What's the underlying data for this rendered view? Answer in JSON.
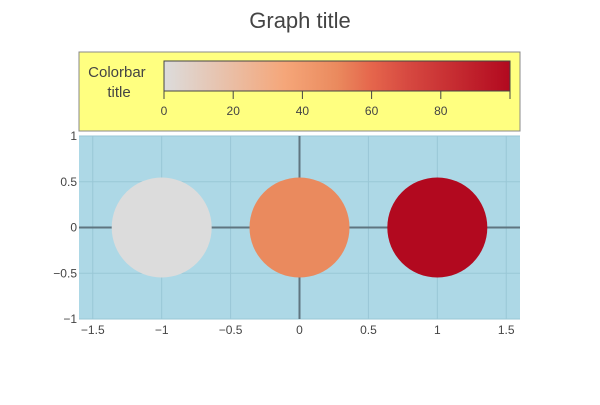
{
  "chart_data": {
    "type": "scatter",
    "title": "Graph title",
    "xlabel": "",
    "ylabel": "",
    "xlim": [
      -1.6,
      1.6
    ],
    "ylim": [
      -1,
      1
    ],
    "x_ticks": [
      -1.5,
      -1,
      -0.5,
      0,
      0.5,
      1,
      1.5
    ],
    "x_tick_labels": [
      "−1.5",
      "−1",
      "−0.5",
      "0",
      "0.5",
      "1",
      "1.5"
    ],
    "y_ticks": [
      -1,
      -0.5,
      0,
      0.5,
      1
    ],
    "y_tick_labels": [
      "−1",
      "−0.5",
      "0",
      "0.5",
      "1"
    ],
    "grid": true,
    "zero_lines": true,
    "plot_background": "#add8e6",
    "points": [
      {
        "x": -1,
        "y": 0,
        "color_value": 0,
        "color": "#dcdcdc"
      },
      {
        "x": 0,
        "y": 0,
        "color_value": 50,
        "color": "#ea8a5e"
      },
      {
        "x": 1,
        "y": 0,
        "color_value": 100,
        "color": "#b2091f"
      }
    ],
    "colorbar": {
      "title": [
        "Colorbar",
        "title"
      ],
      "orientation": "horizontal",
      "placement": "top",
      "background": "#ffff80",
      "range": [
        0,
        100
      ],
      "ticks": [
        0,
        20,
        40,
        60,
        80
      ],
      "tick_labels": [
        "0",
        "20",
        "40",
        "60",
        "80"
      ],
      "colorscale": [
        [
          0,
          "#dcdcdc"
        ],
        [
          0.35,
          "#f5a679"
        ],
        [
          0.5,
          "#ea8a5e"
        ],
        [
          0.6,
          "#e5664c"
        ],
        [
          0.7,
          "#d74a41"
        ],
        [
          1,
          "#b2091f"
        ]
      ]
    }
  }
}
